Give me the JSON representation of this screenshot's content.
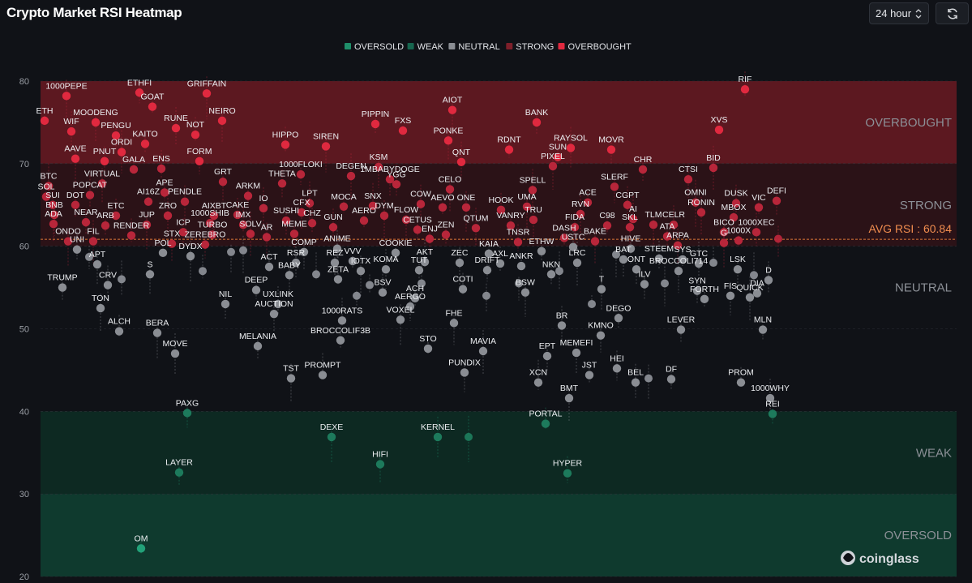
{
  "header": {
    "title": "Crypto Market RSI Heatmap",
    "period_value": "24 hour",
    "period_icon": "chevron-updown-icon",
    "refresh_icon": "refresh-icon"
  },
  "watermark": {
    "text": "coinglass",
    "icon": "coinglass-logo-icon"
  },
  "chart_data": {
    "type": "scatter",
    "title": "Crypto Market RSI Heatmap",
    "xlabel": "",
    "ylabel": "",
    "ylim": [
      20,
      80
    ],
    "yticks": [
      20,
      30,
      40,
      50,
      60,
      70,
      80
    ],
    "grid": true,
    "legend_position": "top-center",
    "legend": [
      {
        "name": "OVERSOLD",
        "color": "#1f8f6a"
      },
      {
        "name": "WEAK",
        "color": "#17664f"
      },
      {
        "name": "NEUTRAL",
        "color": "#8a8d93"
      },
      {
        "name": "STRONG",
        "color": "#7e1f2a"
      },
      {
        "name": "OVERBOUGHT",
        "color": "#e0293f"
      }
    ],
    "zones": [
      {
        "name": "OVERBOUGHT",
        "from": 70,
        "to": 80,
        "color": "#5c1820"
      },
      {
        "name": "STRONG",
        "from": 60,
        "to": 70,
        "color": "#2b1217"
      },
      {
        "name": "NEUTRAL",
        "from": 40,
        "to": 60,
        "color": "#101217"
      },
      {
        "name": "WEAK",
        "from": 30,
        "to": 40,
        "color": "#0d2922"
      },
      {
        "name": "OVERSOLD",
        "from": 20,
        "to": 30,
        "color": "#0f3a2e"
      }
    ],
    "avg_rsi": {
      "label": "AVG RSI : 60.84",
      "value": 60.84
    },
    "points": [
      {
        "name": "ETH",
        "x": 55,
        "y": 75.2
      },
      {
        "name": "1000PEPE",
        "x": 82,
        "y": 78.2
      },
      {
        "name": "MOODENG",
        "x": 118,
        "y": 75
      },
      {
        "name": "WIF",
        "x": 88,
        "y": 73.9
      },
      {
        "name": "ETHFI",
        "x": 172,
        "y": 78.6
      },
      {
        "name": "GOAT",
        "x": 188,
        "y": 76.9
      },
      {
        "name": "GRIFFAIN",
        "x": 255,
        "y": 78.5
      },
      {
        "name": "NEIRO",
        "x": 274,
        "y": 75.2
      },
      {
        "name": "RUNE",
        "x": 217,
        "y": 74.3
      },
      {
        "name": "PENGU",
        "x": 143,
        "y": 73.4
      },
      {
        "name": "KAITO",
        "x": 179,
        "y": 72.4
      },
      {
        "name": "NOT",
        "x": 241,
        "y": 73.5
      },
      {
        "name": "AAVE",
        "x": 93,
        "y": 70.6
      },
      {
        "name": "ORDI",
        "x": 150,
        "y": 71.4
      },
      {
        "name": "PNUT",
        "x": 129,
        "y": 70.3
      },
      {
        "name": "FORM",
        "x": 246,
        "y": 70.3
      },
      {
        "name": "ENS",
        "x": 199,
        "y": 69.4
      },
      {
        "name": "GALA",
        "x": 165,
        "y": 69.3
      },
      {
        "name": "BTC",
        "x": 60,
        "y": 67.3
      },
      {
        "name": "VIRTUAL",
        "x": 126,
        "y": 67.6
      },
      {
        "name": "SOL",
        "x": 57,
        "y": 66
      },
      {
        "name": "POPCAT",
        "x": 111,
        "y": 66.2
      },
      {
        "name": "APE",
        "x": 203,
        "y": 66.5
      },
      {
        "name": "AI16Z",
        "x": 183,
        "y": 65.4
      },
      {
        "name": "PENDLE",
        "x": 228,
        "y": 65.4
      },
      {
        "name": "GRT",
        "x": 275,
        "y": 67.8
      },
      {
        "name": "SUI",
        "x": 65,
        "y": 65
      },
      {
        "name": "DOT",
        "x": 93,
        "y": 65
      },
      {
        "name": "ARKM",
        "x": 306,
        "y": 66.1
      },
      {
        "name": "CAKE",
        "x": 293,
        "y": 63.8
      },
      {
        "name": "AIXBT",
        "x": 264,
        "y": 63.7
      },
      {
        "name": "IO",
        "x": 325,
        "y": 64.6
      },
      {
        "name": "THETA",
        "x": 348,
        "y": 67.6
      },
      {
        "name": "1000FLOKI",
        "x": 371,
        "y": 68.7
      },
      {
        "name": "HIPPO",
        "x": 352,
        "y": 72.3
      },
      {
        "name": "SIREN",
        "x": 402,
        "y": 72.1
      },
      {
        "name": "LPT",
        "x": 382,
        "y": 65.2
      },
      {
        "name": "CFX",
        "x": 372,
        "y": 64.1
      },
      {
        "name": "SUSHI",
        "x": 353,
        "y": 63.1
      },
      {
        "name": "CHZ",
        "x": 385,
        "y": 62.8
      },
      {
        "name": "MOCA",
        "x": 424,
        "y": 64.8
      },
      {
        "name": "DEGEN",
        "x": 433,
        "y": 68.5
      },
      {
        "name": "KSM",
        "x": 467,
        "y": 69.6
      },
      {
        "name": "1MBABYDOGE",
        "x": 481,
        "y": 68.1
      },
      {
        "name": "YGG",
        "x": 489,
        "y": 67.5
      },
      {
        "name": "PIPPIN",
        "x": 463,
        "y": 74.8
      },
      {
        "name": "FXS",
        "x": 497,
        "y": 74
      },
      {
        "name": "AIOT",
        "x": 558,
        "y": 76.5
      },
      {
        "name": "PONKE",
        "x": 553,
        "y": 72.8
      },
      {
        "name": "QNT",
        "x": 569,
        "y": 70.2
      },
      {
        "name": "BANK",
        "x": 662,
        "y": 75
      },
      {
        "name": "RDNT",
        "x": 628,
        "y": 71.7
      },
      {
        "name": "SUN",
        "x": 688,
        "y": 70.8
      },
      {
        "name": "PIXEL",
        "x": 682,
        "y": 69.7
      },
      {
        "name": "RAYSOL",
        "x": 704,
        "y": 71.9
      },
      {
        "name": "MOVR",
        "x": 754,
        "y": 71.7
      },
      {
        "name": "CHR",
        "x": 793,
        "y": 69.3
      },
      {
        "name": "RIF",
        "x": 919,
        "y": 79
      },
      {
        "name": "XVS",
        "x": 887,
        "y": 74.1
      },
      {
        "name": "BID",
        "x": 880,
        "y": 69.5
      },
      {
        "name": "CTSI",
        "x": 849,
        "y": 68.1
      },
      {
        "name": "DEFI",
        "x": 958,
        "y": 65.5
      },
      {
        "name": "DUSK",
        "x": 908,
        "y": 65.2
      },
      {
        "name": "VIC",
        "x": 936,
        "y": 64.7
      },
      {
        "name": "OMNI",
        "x": 858,
        "y": 65.3
      },
      {
        "name": "RONIN",
        "x": 865,
        "y": 64.1
      },
      {
        "name": "MBOX",
        "x": 905,
        "y": 63.5
      },
      {
        "name": "1000XEC",
        "x": 933,
        "y": 61.7
      },
      {
        "name": "BICO",
        "x": 893,
        "y": 61.7
      },
      {
        "name": "1000X",
        "x": 911,
        "y": 60.7
      },
      {
        "name": "G",
        "x": 893,
        "y": 60.4
      },
      {
        "name": "BNB",
        "x": 67,
        "y": 63.8
      },
      {
        "name": "ADA",
        "x": 66,
        "y": 62.7
      },
      {
        "name": "NEAR",
        "x": 106,
        "y": 62.9
      },
      {
        "name": "ARB",
        "x": 130,
        "y": 62.5
      },
      {
        "name": "ETC",
        "x": 143,
        "y": 63.7
      },
      {
        "name": "JUP",
        "x": 181,
        "y": 62.6
      },
      {
        "name": "ZRO",
        "x": 207,
        "y": 63.7
      },
      {
        "name": "ICP",
        "x": 226,
        "y": 61.7
      },
      {
        "name": "1000SHIB",
        "x": 259,
        "y": 62.8
      },
      {
        "name": "IMX",
        "x": 300,
        "y": 62.6
      },
      {
        "name": "TURBO",
        "x": 262,
        "y": 61.4
      },
      {
        "name": "SOLV",
        "x": 309,
        "y": 61.5
      },
      {
        "name": "AR",
        "x": 329,
        "y": 61.1
      },
      {
        "name": "MEME",
        "x": 363,
        "y": 61.5
      },
      {
        "name": "GUN",
        "x": 411,
        "y": 62.3
      },
      {
        "name": "AERO",
        "x": 449,
        "y": 63.1
      },
      {
        "name": "SNX",
        "x": 460,
        "y": 64.9
      },
      {
        "name": "DYM",
        "x": 474,
        "y": 63.7
      },
      {
        "name": "FLOW",
        "x": 501,
        "y": 63.2
      },
      {
        "name": "COW",
        "x": 519,
        "y": 65.1
      },
      {
        "name": "CETUS",
        "x": 515,
        "y": 62
      },
      {
        "name": "AEVO",
        "x": 546,
        "y": 64.7
      },
      {
        "name": "ONE",
        "x": 575,
        "y": 64.7
      },
      {
        "name": "CELO",
        "x": 555,
        "y": 66.9
      },
      {
        "name": "QTUM",
        "x": 587,
        "y": 62.2
      },
      {
        "name": "ENJ",
        "x": 530,
        "y": 60.9
      },
      {
        "name": "ZEN",
        "x": 550,
        "y": 61.4
      },
      {
        "name": "HOOK",
        "x": 618,
        "y": 64.4
      },
      {
        "name": "UMA",
        "x": 650,
        "y": 64.8
      },
      {
        "name": "SPELL",
        "x": 657,
        "y": 66.8
      },
      {
        "name": "TRU",
        "x": 658,
        "y": 63.2
      },
      {
        "name": "VANRY",
        "x": 630,
        "y": 62.5
      },
      {
        "name": "TNSR",
        "x": 639,
        "y": 60.5
      },
      {
        "name": "ACE",
        "x": 725,
        "y": 65.3
      },
      {
        "name": "RVN",
        "x": 716,
        "y": 63.9
      },
      {
        "name": "FIDA",
        "x": 709,
        "y": 62.3
      },
      {
        "name": "SLERF",
        "x": 758,
        "y": 67.2
      },
      {
        "name": "CGPT",
        "x": 774,
        "y": 65
      },
      {
        "name": "C98",
        "x": 749,
        "y": 62.5
      },
      {
        "name": "AI",
        "x": 781,
        "y": 63.3
      },
      {
        "name": "SKL",
        "x": 777,
        "y": 62.3
      },
      {
        "name": "TLM",
        "x": 806,
        "y": 62.6
      },
      {
        "name": "CELR",
        "x": 831,
        "y": 62.6
      },
      {
        "name": "ATA",
        "x": 823,
        "y": 61.2
      },
      {
        "name": "DASH",
        "x": 696,
        "y": 61
      },
      {
        "name": "USTC",
        "x": 707,
        "y": 59.9
      },
      {
        "name": "BAKE",
        "x": 734,
        "y": 60.6
      },
      {
        "name": "ARPA",
        "x": 836,
        "y": 60.1
      },
      {
        "name": "HIVE",
        "x": 778,
        "y": 59.7
      },
      {
        "name": "ETHW",
        "x": 668,
        "y": 59.4
      },
      {
        "name": "RENDER",
        "x": 162,
        "y": 61.3
      },
      {
        "name": "ONDO",
        "x": 84,
        "y": 60.6
      },
      {
        "name": "FIL",
        "x": 115,
        "y": 60.6
      },
      {
        "name": "STX",
        "x": 212,
        "y": 60.3
      },
      {
        "name": "ZEREBRO",
        "x": 253,
        "y": 60.2
      },
      {
        "name": "UNI",
        "x": 95,
        "y": 59.6
      },
      {
        "name": "POL",
        "x": 201,
        "y": 59.2
      },
      {
        "name": "DYDX",
        "x": 235,
        "y": 58.8
      },
      {
        "name": "APT",
        "x": 120,
        "y": 57.8
      },
      {
        "name": "COMP",
        "x": 375,
        "y": 59.3
      },
      {
        "name": "ANIME",
        "x": 416,
        "y": 59.7
      },
      {
        "name": "COOKIE",
        "x": 488,
        "y": 59.2
      },
      {
        "name": "AKT",
        "x": 524,
        "y": 58.1
      },
      {
        "name": "ZEC",
        "x": 567,
        "y": 58
      },
      {
        "name": "KAIA",
        "x": 603,
        "y": 59.1
      },
      {
        "name": "RSR",
        "x": 365,
        "y": 58
      },
      {
        "name": "REZ",
        "x": 413,
        "y": 58
      },
      {
        "name": "VVV",
        "x": 435,
        "y": 58.2
      },
      {
        "name": "ACT",
        "x": 332,
        "y": 57.5
      },
      {
        "name": "BABY",
        "x": 357,
        "y": 56.5
      },
      {
        "name": "KOMA",
        "x": 476,
        "y": 57.2
      },
      {
        "name": "TUT",
        "x": 517,
        "y": 57.1
      },
      {
        "name": "DRIFT",
        "x": 601,
        "y": 57.1
      },
      {
        "name": "AXL",
        "x": 617,
        "y": 57.9
      },
      {
        "name": "ANKR",
        "x": 643,
        "y": 57.6
      },
      {
        "name": "LRC",
        "x": 712,
        "y": 58
      },
      {
        "name": "BAT",
        "x": 769,
        "y": 58.4
      },
      {
        "name": "ONT",
        "x": 785,
        "y": 57.2
      },
      {
        "name": "STEEM",
        "x": 813,
        "y": 58.5
      },
      {
        "name": "SYS",
        "x": 842,
        "y": 58.4
      },
      {
        "name": "GTC",
        "x": 862,
        "y": 57.9
      },
      {
        "name": "BROCCOLI714",
        "x": 837,
        "y": 57
      },
      {
        "name": "LSK",
        "x": 910,
        "y": 57.2
      },
      {
        "name": "D",
        "x": 948,
        "y": 55.9
      },
      {
        "name": "NKN",
        "x": 680,
        "y": 56.6
      },
      {
        "name": "ZETA",
        "x": 417,
        "y": 56
      },
      {
        "name": "IOTX",
        "x": 445,
        "y": 57
      },
      {
        "name": "S",
        "x": 185,
        "y": 56.6
      },
      {
        "name": "CRV",
        "x": 133,
        "y": 55.3
      },
      {
        "name": "TRUMP",
        "x": 77,
        "y": 55
      },
      {
        "name": "DEEP",
        "x": 316,
        "y": 54.7
      },
      {
        "name": "COTI",
        "x": 571,
        "y": 54.8
      },
      {
        "name": "BSW",
        "x": 648,
        "y": 54.4
      },
      {
        "name": "T",
        "x": 742,
        "y": 54.8
      },
      {
        "name": "ILV",
        "x": 795,
        "y": 55.4
      },
      {
        "name": "SYN",
        "x": 860,
        "y": 54.6
      },
      {
        "name": "FORTH",
        "x": 869,
        "y": 53.6
      },
      {
        "name": "DIA",
        "x": 934,
        "y": 54.3
      },
      {
        "name": "QUICK",
        "x": 925,
        "y": 53.8
      },
      {
        "name": "FIS",
        "x": 901,
        "y": 54
      },
      {
        "name": "NIL",
        "x": 278,
        "y": 53
      },
      {
        "name": "UXLINK",
        "x": 343,
        "y": 53
      },
      {
        "name": "ACH",
        "x": 512,
        "y": 53.7
      },
      {
        "name": "BSV",
        "x": 472,
        "y": 54.4
      },
      {
        "name": "TON",
        "x": 124,
        "y": 52.5
      },
      {
        "name": "AUCTION",
        "x": 338,
        "y": 51.8
      },
      {
        "name": "AERGO",
        "x": 506,
        "y": 52.7
      },
      {
        "name": "DEGO",
        "x": 763,
        "y": 51.3
      },
      {
        "name": "1000RATS",
        "x": 422,
        "y": 51
      },
      {
        "name": "VOXEL",
        "x": 494,
        "y": 51.1
      },
      {
        "name": "FHE",
        "x": 560,
        "y": 50.7
      },
      {
        "name": "BR",
        "x": 693,
        "y": 50.4
      },
      {
        "name": "LEVER",
        "x": 840,
        "y": 49.9
      },
      {
        "name": "MLN",
        "x": 941,
        "y": 49.9
      },
      {
        "name": "ALCH",
        "x": 147,
        "y": 49.7
      },
      {
        "name": "BERA",
        "x": 194,
        "y": 49.5
      },
      {
        "name": "MOVE",
        "x": 216,
        "y": 47
      },
      {
        "name": "KMNO",
        "x": 741,
        "y": 49.2
      },
      {
        "name": "MELANIA",
        "x": 318,
        "y": 47.9
      },
      {
        "name": "BROCCOLIF3B",
        "x": 420,
        "y": 48.6
      },
      {
        "name": "STO",
        "x": 528,
        "y": 47.6
      },
      {
        "name": "MAVIA",
        "x": 596,
        "y": 47.3
      },
      {
        "name": "MEMEFI",
        "x": 711,
        "y": 47.1
      },
      {
        "name": "EPT",
        "x": 675,
        "y": 46.7
      },
      {
        "name": "HEI",
        "x": 761,
        "y": 45.2
      },
      {
        "name": "JST",
        "x": 727,
        "y": 44.4
      },
      {
        "name": "PROMPT",
        "x": 398,
        "y": 44.4
      },
      {
        "name": "TST",
        "x": 359,
        "y": 44
      },
      {
        "name": "PUNDIX",
        "x": 573,
        "y": 44.7
      },
      {
        "name": "BEL",
        "x": 784,
        "y": 43.5
      },
      {
        "name": "DF",
        "x": 828,
        "y": 43.9
      },
      {
        "name": "XCN",
        "x": 664,
        "y": 43.5
      },
      {
        "name": "PROM",
        "x": 914,
        "y": 43.5
      },
      {
        "name": "BMT",
        "x": 702,
        "y": 41.6
      },
      {
        "name": "1000WHY",
        "x": 950,
        "y": 41.6
      },
      {
        "name": "PAXG",
        "x": 231,
        "y": 39.8
      },
      {
        "name": "REI",
        "x": 953,
        "y": 39.7
      },
      {
        "name": "PORTAL",
        "x": 673,
        "y": 38.5
      },
      {
        "name": "DEXE",
        "x": 409,
        "y": 36.9
      },
      {
        "name": "KERNEL",
        "x": 540,
        "y": 36.9
      },
      {
        "name": "HIFI",
        "x": 469,
        "y": 33.6
      },
      {
        "name": "LAYER",
        "x": 221,
        "y": 32.6
      },
      {
        "name": "HYPER",
        "x": 700,
        "y": 32.5
      },
      {
        "name": "OM",
        "x": 174,
        "y": 23.4
      }
    ],
    "unlabeled_points": [
      {
        "x": 578,
        "y": 36.9
      },
      {
        "name": "",
        "x": 800,
        "y": 44
      },
      {
        "x": 640,
        "y": 55.5
      },
      {
        "x": 520,
        "y": 55.5
      },
      {
        "x": 456,
        "y": 55.3
      },
      {
        "x": 390,
        "y": 56.6
      },
      {
        "x": 300,
        "y": 59.5
      },
      {
        "x": 285,
        "y": 59.3
      },
      {
        "x": 150,
        "y": 56
      },
      {
        "x": 110,
        "y": 58.7
      },
      {
        "x": 930,
        "y": 56.5
      },
      {
        "x": 880,
        "y": 58
      },
      {
        "x": 760,
        "y": 59
      },
      {
        "x": 690,
        "y": 57
      },
      {
        "x": 600,
        "y": 54
      },
      {
        "x": 440,
        "y": 54
      },
      {
        "x": 250,
        "y": 57
      },
      {
        "x": 730,
        "y": 53
      },
      {
        "x": 820,
        "y": 55.5
      },
      {
        "x": 960,
        "y": 60.9
      }
    ]
  }
}
